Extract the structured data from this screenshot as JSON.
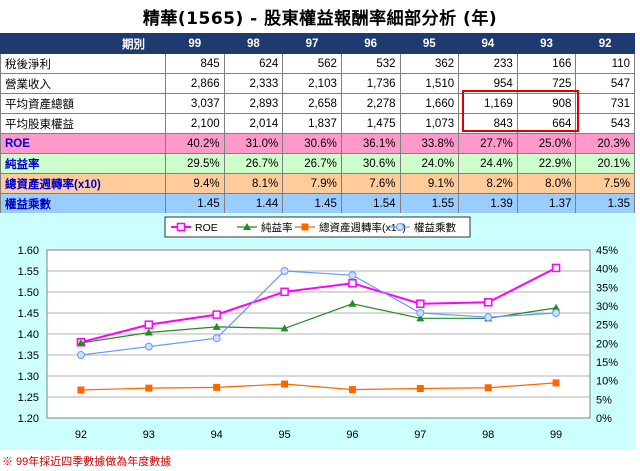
{
  "title": "精華(1565) -  股東權益報酬率細部分析 (年)",
  "table": {
    "header_label": "期別",
    "years": [
      "99",
      "98",
      "97",
      "96",
      "95",
      "94",
      "93",
      "92"
    ],
    "rows": [
      {
        "label": "稅後淨利",
        "values": [
          "845",
          "624",
          "562",
          "532",
          "362",
          "233",
          "166",
          "110"
        ]
      },
      {
        "label": "營業收入",
        "values": [
          "2,866",
          "2,333",
          "2,103",
          "1,736",
          "1,510",
          "954",
          "725",
          "547"
        ]
      },
      {
        "label": "平均資產總額",
        "values": [
          "3,037",
          "2,893",
          "2,658",
          "2,278",
          "1,660",
          "1,169",
          "908",
          "731"
        ]
      },
      {
        "label": "平均股東權益",
        "values": [
          "2,100",
          "2,014",
          "1,837",
          "1,475",
          "1,073",
          "843",
          "664",
          "543"
        ]
      },
      {
        "label": "ROE",
        "values": [
          "40.2%",
          "31.0%",
          "30.6%",
          "36.1%",
          "33.8%",
          "27.7%",
          "25.0%",
          "20.3%"
        ]
      },
      {
        "label": "純益率",
        "values": [
          "29.5%",
          "26.7%",
          "26.7%",
          "30.6%",
          "24.0%",
          "24.4%",
          "22.9%",
          "20.1%"
        ]
      },
      {
        "label": "總資產週轉率(x10)",
        "values": [
          "9.4%",
          "8.1%",
          "7.9%",
          "7.6%",
          "9.1%",
          "8.2%",
          "8.0%",
          "7.5%"
        ]
      },
      {
        "label": "權益乘數",
        "values": [
          "1.45",
          "1.44",
          "1.45",
          "1.54",
          "1.55",
          "1.39",
          "1.37",
          "1.35"
        ]
      }
    ]
  },
  "colors": {
    "roe": "#ff00ff",
    "net_margin": "#228b22",
    "turnover": "#ff6600",
    "leverage": "#6699ff",
    "chart_bg": "#ccffff",
    "header_bg": "#1f3a6e"
  },
  "chart_data": {
    "type": "line",
    "categories": [
      "92",
      "93",
      "94",
      "95",
      "96",
      "97",
      "98",
      "99"
    ],
    "left_axis": {
      "ylim": [
        1.2,
        1.6
      ],
      "ticks": [
        "1.20",
        "1.25",
        "1.30",
        "1.35",
        "1.40",
        "1.45",
        "1.50",
        "1.55",
        "1.60"
      ]
    },
    "right_axis": {
      "ylim": [
        0,
        45
      ],
      "ticks": [
        "0%",
        "5%",
        "10%",
        "15%",
        "20%",
        "25%",
        "30%",
        "35%",
        "40%",
        "45%"
      ]
    },
    "series": [
      {
        "name": "ROE",
        "axis": "right",
        "color": "#ff00ff",
        "marker": "square-open",
        "values": [
          20.3,
          25.0,
          27.7,
          33.8,
          36.1,
          30.6,
          31.0,
          40.2
        ]
      },
      {
        "name": "純益率",
        "axis": "right",
        "color": "#228b22",
        "marker": "triangle",
        "values": [
          20.1,
          22.9,
          24.4,
          24.0,
          30.6,
          26.7,
          26.7,
          29.5
        ]
      },
      {
        "name": "總資產週轉率(x10)",
        "axis": "right",
        "color": "#ff6600",
        "marker": "square",
        "values": [
          7.5,
          8.0,
          8.2,
          9.1,
          7.6,
          7.9,
          8.1,
          9.4
        ]
      },
      {
        "name": "權益乘數",
        "axis": "left",
        "color": "#6699ff",
        "marker": "circle",
        "values": [
          1.35,
          1.37,
          1.39,
          1.55,
          1.54,
          1.45,
          1.44,
          1.45
        ]
      }
    ],
    "legend_position": "top"
  },
  "footnote": "※ 99年採近四季數據做為年度數據"
}
